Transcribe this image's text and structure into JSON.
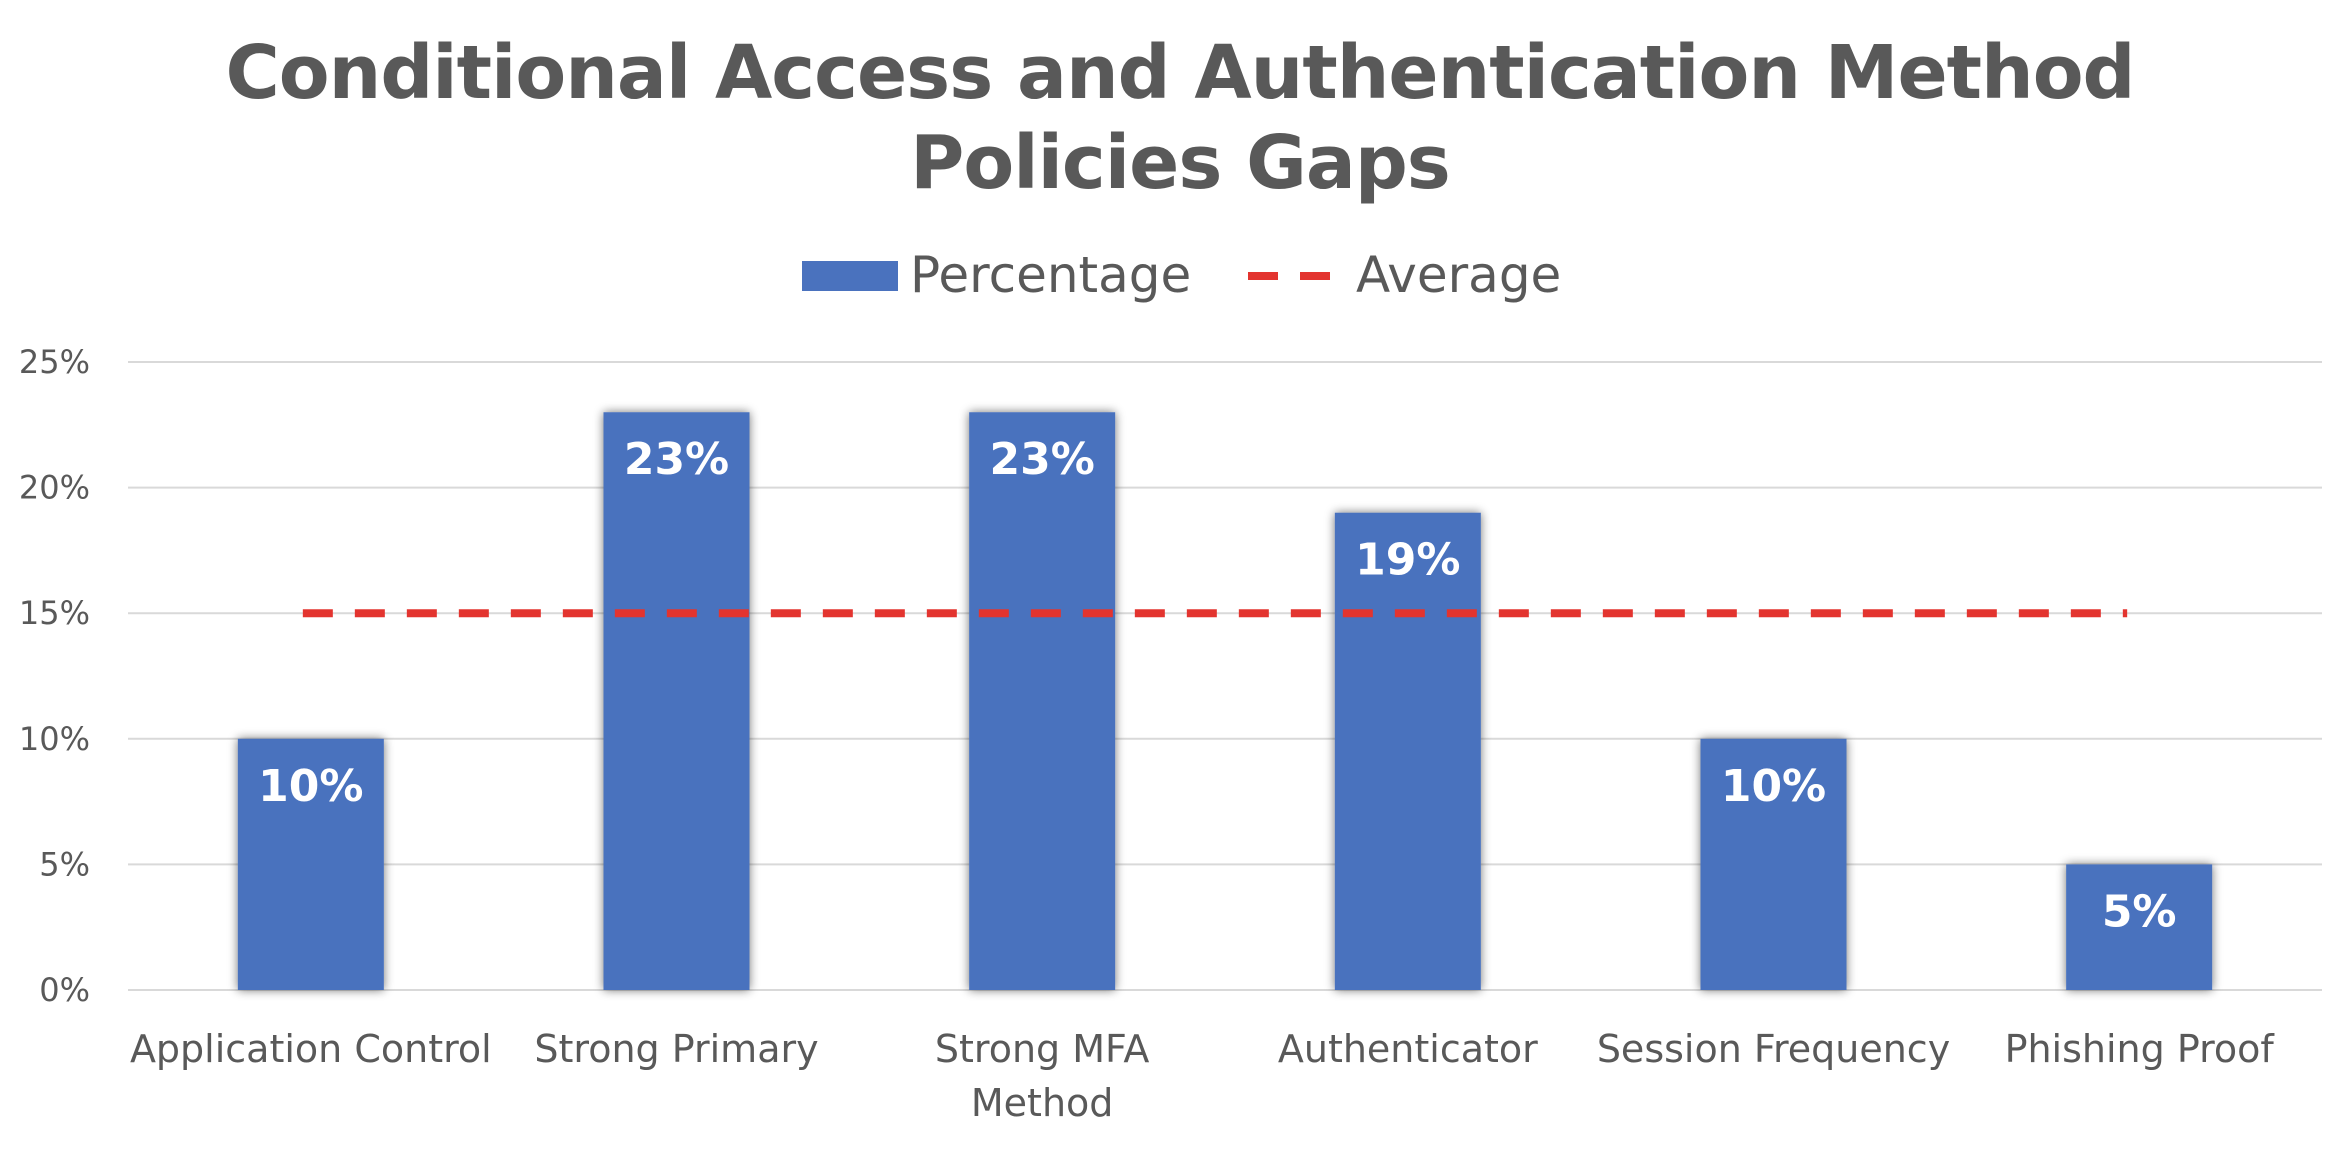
{
  "chart_data": {
    "type": "bar",
    "title": [
      "Conditional Access and Authentication Method",
      "Policies Gaps"
    ],
    "categories": [
      [
        "Application Control"
      ],
      [
        "Strong Primary"
      ],
      [
        "Strong MFA",
        "Method"
      ],
      [
        "Authenticator"
      ],
      [
        "Session Frequency"
      ],
      [
        "Phishing Proof"
      ]
    ],
    "series": [
      {
        "name": "Percentage",
        "type": "bar",
        "color": "#4A72BE",
        "values": [
          10,
          23,
          23,
          19,
          10,
          5
        ],
        "labels": [
          "10%",
          "23%",
          "23%",
          "19%",
          "10%",
          "5%"
        ]
      },
      {
        "name": "Average",
        "type": "line",
        "style": "dashed",
        "color": "#E3342F",
        "value": 15
      }
    ],
    "ylim": [
      0,
      25
    ],
    "yticks": [
      0,
      5,
      10,
      15,
      20,
      25
    ],
    "ytick_labels": [
      "0%",
      "5%",
      "10%",
      "15%",
      "20%",
      "25%"
    ],
    "xlabel": "",
    "ylabel": "",
    "grid": true,
    "legend_position": "top-center"
  }
}
